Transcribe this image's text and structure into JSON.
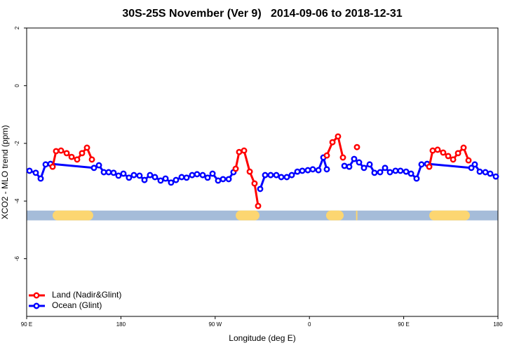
{
  "chart_data": {
    "type": "line",
    "title": "30S-25S November (Ver 9)   2014-09-06 to 2018-12-31",
    "x_label": "Longitude (deg E)",
    "y_label": "XCO2 - MLO trend (ppm)",
    "xlim": [
      90,
      540
    ],
    "ylim": [
      -8,
      2
    ],
    "xticks": [
      {
        "value": 90,
        "label": "90 E"
      },
      180,
      {
        "value": 270,
        "label": "90 W"
      },
      {
        "value": 360,
        "label": "0"
      },
      {
        "value": 450,
        "label": "90 E"
      },
      {
        "value": 540,
        "label": "180"
      }
    ],
    "yticks": [
      2,
      0,
      -2,
      -4,
      -6
    ],
    "legend": "bottom-left",
    "strip": {
      "y": -4.5,
      "color": "#a5bcd9",
      "land_color": "#fcd671",
      "land_segments": [
        [
          114.8,
          153.6
        ],
        [
          289.6,
          312.3
        ],
        [
          375.9,
          392.7
        ],
        [
          404.5,
          405.8
        ],
        [
          474.4,
          513.2
        ]
      ]
    },
    "series": [
      {
        "name": "Ocean (Glint)",
        "color": "#0000ff",
        "x": [
          92.7,
          98.7,
          103.4,
          108.1,
          112.8,
          154.3,
          159.0,
          163.7,
          168.3,
          173.0,
          177.7,
          182.4,
          187.7,
          192.4,
          197.8,
          202.5,
          207.8,
          212.5,
          217.9,
          222.6,
          227.9,
          232.6,
          238.0,
          242.7,
          248.0,
          252.7,
          258.1,
          262.8,
          267.5,
          272.8,
          277.5,
          282.9,
          287.5,
          null,
          313.0,
          317.7,
          323.0,
          328.4,
          333.1,
          338.4,
          343.1,
          348.5,
          353.2,
          358.5,
          363.2,
          368.6,
          373.3,
          376.6,
          null,
          393.4,
          398.0,
          402.7,
          407.4,
          412.1,
          417.5,
          422.1,
          427.5,
          432.2,
          436.9,
          442.2,
          446.9,
          452.3,
          457.0,
          462.3,
          467.0,
          472.4,
          514.6,
          517.9,
          522.6,
          528.0,
          532.6,
          538.0
        ],
        "values": [
          -2.95,
          -3.02,
          -3.22,
          -2.73,
          -2.71,
          -2.85,
          -2.76,
          -3.0,
          -3.0,
          -3.02,
          -3.12,
          -3.05,
          -3.19,
          -3.1,
          -3.12,
          -3.27,
          -3.1,
          -3.17,
          -3.29,
          -3.22,
          -3.36,
          -3.27,
          -3.17,
          -3.19,
          -3.1,
          -3.07,
          -3.1,
          -3.19,
          -3.05,
          -3.29,
          -3.24,
          -3.24,
          -3.0,
          null,
          -3.58,
          -3.1,
          -3.1,
          -3.1,
          -3.17,
          -3.17,
          -3.1,
          -2.98,
          -2.95,
          -2.93,
          -2.9,
          -2.93,
          -2.49,
          -2.9,
          null,
          -2.78,
          -2.81,
          -2.54,
          -2.66,
          -2.85,
          -2.73,
          -3.02,
          -3.0,
          -2.85,
          -3.0,
          -2.95,
          -2.95,
          -2.98,
          -3.05,
          -3.22,
          -2.73,
          -2.71,
          -2.85,
          -2.73,
          -2.98,
          -3.0,
          -3.05,
          -3.15
        ]
      },
      {
        "name": "Land (Nadir&Glint)",
        "color": "#ff0000",
        "x": [
          114.8,
          118.1,
          122.8,
          128.2,
          132.9,
          138.2,
          142.9,
          147.6,
          152.3,
          null,
          289.6,
          292.9,
          297.6,
          303.0,
          307.6,
          311.0,
          null,
          376.6,
          382.0,
          387.3,
          392.0,
          null,
          405.4,
          null,
          474.4,
          477.7,
          482.4,
          487.7,
          492.5,
          497.2,
          501.9,
          507.2,
          511.9
        ],
        "values": [
          -2.81,
          -2.27,
          -2.25,
          -2.34,
          -2.47,
          -2.56,
          -2.34,
          -2.15,
          -2.56,
          null,
          -2.88,
          -2.3,
          -2.25,
          -2.98,
          -3.39,
          -4.17,
          null,
          -2.42,
          -1.96,
          -1.76,
          -2.49,
          null,
          -2.13,
          null,
          -2.81,
          -2.25,
          -2.22,
          -2.32,
          -2.44,
          -2.56,
          -2.34,
          -2.15,
          -2.59
        ]
      }
    ]
  }
}
